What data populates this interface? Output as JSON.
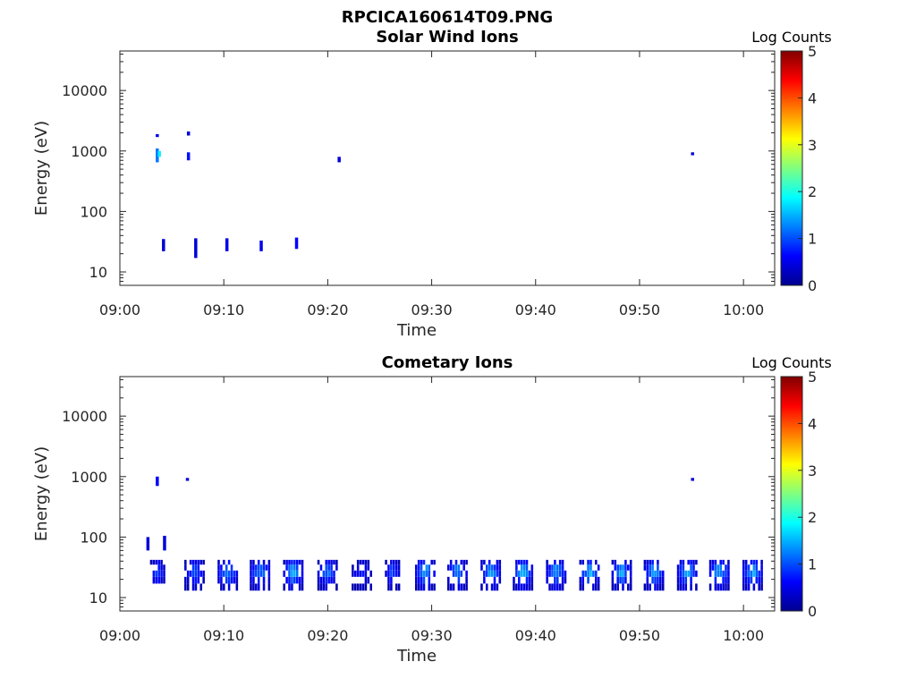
{
  "figure": {
    "title": "RPCICA160614T09.PNG"
  },
  "chart_data": [
    {
      "type": "heatmap",
      "title": "Solar Wind Ions",
      "xlabel": "Time",
      "ylabel": "Energy (eV)",
      "xticks": [
        "09:00",
        "09:10",
        "09:20",
        "09:30",
        "09:40",
        "09:50",
        "10:00"
      ],
      "xlim": [
        "09:00",
        "10:03"
      ],
      "yscale": "log",
      "yticks": [
        "10",
        "100",
        "1000",
        "10000"
      ],
      "ylim": [
        6,
        45000
      ],
      "colorbar": {
        "label": "Log Counts",
        "range": [
          0,
          5
        ],
        "ticks": [
          "0",
          "1",
          "2",
          "3",
          "4",
          "5"
        ],
        "colormap": "jet"
      },
      "cells": [
        {
          "t": 3.6,
          "e": [
            1700,
            1900
          ],
          "v": 0.5
        },
        {
          "t": 3.6,
          "e": [
            650,
            1100
          ],
          "v": 1.2
        },
        {
          "t": 3.8,
          "e": [
            800,
            1000
          ],
          "v": 1.8
        },
        {
          "t": 6.6,
          "e": [
            1800,
            2100
          ],
          "v": 0.4
        },
        {
          "t": 6.6,
          "e": [
            700,
            950
          ],
          "v": 0.7
        },
        {
          "t": 21.1,
          "e": [
            650,
            800
          ],
          "v": 0.4
        },
        {
          "t": 55.1,
          "e": [
            850,
            950
          ],
          "v": 0.4
        },
        {
          "t": 4.2,
          "e": [
            22,
            35
          ],
          "v": 0.4
        },
        {
          "t": 7.3,
          "e": [
            17,
            36
          ],
          "v": 0.4
        },
        {
          "t": 10.3,
          "e": [
            22,
            36
          ],
          "v": 0.5
        },
        {
          "t": 13.6,
          "e": [
            22,
            33
          ],
          "v": 0.5
        },
        {
          "t": 17.0,
          "e": [
            24,
            37
          ],
          "v": 0.6
        }
      ]
    },
    {
      "type": "heatmap",
      "title": "Cometary Ions",
      "xlabel": "Time",
      "ylabel": "Energy (eV)",
      "xticks": [
        "09:00",
        "09:10",
        "09:20",
        "09:30",
        "09:40",
        "09:50",
        "10:00"
      ],
      "xlim": [
        "09:00",
        "10:03"
      ],
      "yscale": "log",
      "yticks": [
        "10",
        "100",
        "1000",
        "10000"
      ],
      "ylim": [
        6,
        45000
      ],
      "colorbar": {
        "label": "Log Counts",
        "range": [
          0,
          5
        ],
        "ticks": [
          "0",
          "1",
          "2",
          "3",
          "4",
          "5"
        ],
        "colormap": "jet"
      },
      "cells": [
        {
          "t": 2.7,
          "e": [
            60,
            100
          ],
          "v": 0.4
        },
        {
          "t": 3.6,
          "e": [
            700,
            1000
          ],
          "v": 0.6
        },
        {
          "t": 6.5,
          "e": [
            850,
            950
          ],
          "v": 0.4
        },
        {
          "t": 55.1,
          "e": [
            850,
            950
          ],
          "v": 0.4
        },
        {
          "t": 4.3,
          "e": [
            60,
            105
          ],
          "v": 0.4
        }
      ],
      "bursts": [
        {
          "t": 3.7,
          "w": 1.6,
          "peak": 1.2
        },
        {
          "t": 7.2,
          "w": 2.0,
          "peak": 1.3
        },
        {
          "t": 10.4,
          "w": 2.0,
          "peak": 1.6
        },
        {
          "t": 13.5,
          "w": 2.0,
          "peak": 1.6
        },
        {
          "t": 16.7,
          "w": 2.0,
          "peak": 1.8
        },
        {
          "t": 20.0,
          "w": 2.0,
          "peak": 1.4
        },
        {
          "t": 23.3,
          "w": 2.0,
          "peak": 0.9
        },
        {
          "t": 26.3,
          "w": 1.6,
          "peak": 1.2
        },
        {
          "t": 29.4,
          "w": 2.0,
          "peak": 1.8
        },
        {
          "t": 32.5,
          "w": 2.0,
          "peak": 1.7
        },
        {
          "t": 35.7,
          "w": 2.0,
          "peak": 1.7
        },
        {
          "t": 38.8,
          "w": 2.0,
          "peak": 1.8
        },
        {
          "t": 42.0,
          "w": 2.0,
          "peak": 1.7
        },
        {
          "t": 45.2,
          "w": 2.0,
          "peak": 1.7
        },
        {
          "t": 48.3,
          "w": 2.0,
          "peak": 1.7
        },
        {
          "t": 51.4,
          "w": 2.0,
          "peak": 1.7
        },
        {
          "t": 54.6,
          "w": 2.0,
          "peak": 1.8
        },
        {
          "t": 57.7,
          "w": 2.0,
          "peak": 1.8
        },
        {
          "t": 60.9,
          "w": 2.0,
          "peak": 1.8
        }
      ]
    }
  ]
}
